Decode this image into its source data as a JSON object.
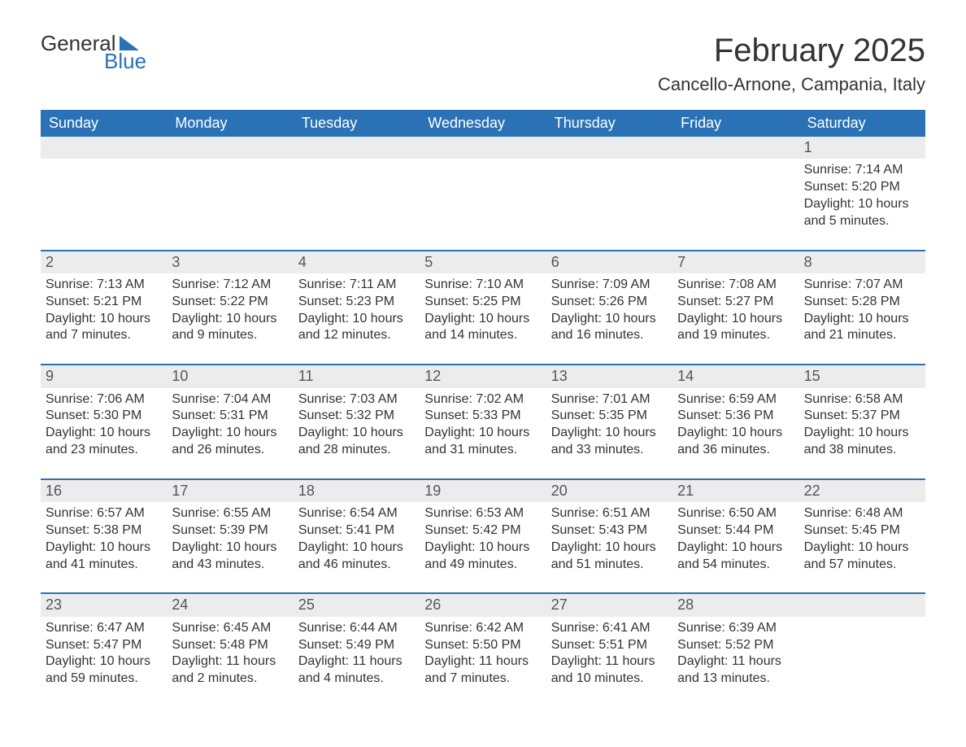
{
  "logo": {
    "line1": "General",
    "line2": "Blue"
  },
  "title": "February 2025",
  "location": "Cancello-Arnone, Campania, Italy",
  "colors": {
    "header_bg": "#2a72b5",
    "header_text": "#ffffff",
    "daynum_bg": "#ececec",
    "text": "#333333",
    "logo_accent": "#2a72b5"
  },
  "fonts": {
    "title_pt": 40,
    "location_pt": 22,
    "dayhead_pt": 18,
    "daynum_pt": 18,
    "body_pt": 16
  },
  "dayNames": [
    "Sunday",
    "Monday",
    "Tuesday",
    "Wednesday",
    "Thursday",
    "Friday",
    "Saturday"
  ],
  "leadingBlanks": 6,
  "trailingBlanks": 1,
  "days": [
    {
      "n": "1",
      "sunrise": "7:14 AM",
      "sunset": "5:20 PM",
      "daylight": "10 hours and 5 minutes."
    },
    {
      "n": "2",
      "sunrise": "7:13 AM",
      "sunset": "5:21 PM",
      "daylight": "10 hours and 7 minutes."
    },
    {
      "n": "3",
      "sunrise": "7:12 AM",
      "sunset": "5:22 PM",
      "daylight": "10 hours and 9 minutes."
    },
    {
      "n": "4",
      "sunrise": "7:11 AM",
      "sunset": "5:23 PM",
      "daylight": "10 hours and 12 minutes."
    },
    {
      "n": "5",
      "sunrise": "7:10 AM",
      "sunset": "5:25 PM",
      "daylight": "10 hours and 14 minutes."
    },
    {
      "n": "6",
      "sunrise": "7:09 AM",
      "sunset": "5:26 PM",
      "daylight": "10 hours and 16 minutes."
    },
    {
      "n": "7",
      "sunrise": "7:08 AM",
      "sunset": "5:27 PM",
      "daylight": "10 hours and 19 minutes."
    },
    {
      "n": "8",
      "sunrise": "7:07 AM",
      "sunset": "5:28 PM",
      "daylight": "10 hours and 21 minutes."
    },
    {
      "n": "9",
      "sunrise": "7:06 AM",
      "sunset": "5:30 PM",
      "daylight": "10 hours and 23 minutes."
    },
    {
      "n": "10",
      "sunrise": "7:04 AM",
      "sunset": "5:31 PM",
      "daylight": "10 hours and 26 minutes."
    },
    {
      "n": "11",
      "sunrise": "7:03 AM",
      "sunset": "5:32 PM",
      "daylight": "10 hours and 28 minutes."
    },
    {
      "n": "12",
      "sunrise": "7:02 AM",
      "sunset": "5:33 PM",
      "daylight": "10 hours and 31 minutes."
    },
    {
      "n": "13",
      "sunrise": "7:01 AM",
      "sunset": "5:35 PM",
      "daylight": "10 hours and 33 minutes."
    },
    {
      "n": "14",
      "sunrise": "6:59 AM",
      "sunset": "5:36 PM",
      "daylight": "10 hours and 36 minutes."
    },
    {
      "n": "15",
      "sunrise": "6:58 AM",
      "sunset": "5:37 PM",
      "daylight": "10 hours and 38 minutes."
    },
    {
      "n": "16",
      "sunrise": "6:57 AM",
      "sunset": "5:38 PM",
      "daylight": "10 hours and 41 minutes."
    },
    {
      "n": "17",
      "sunrise": "6:55 AM",
      "sunset": "5:39 PM",
      "daylight": "10 hours and 43 minutes."
    },
    {
      "n": "18",
      "sunrise": "6:54 AM",
      "sunset": "5:41 PM",
      "daylight": "10 hours and 46 minutes."
    },
    {
      "n": "19",
      "sunrise": "6:53 AM",
      "sunset": "5:42 PM",
      "daylight": "10 hours and 49 minutes."
    },
    {
      "n": "20",
      "sunrise": "6:51 AM",
      "sunset": "5:43 PM",
      "daylight": "10 hours and 51 minutes."
    },
    {
      "n": "21",
      "sunrise": "6:50 AM",
      "sunset": "5:44 PM",
      "daylight": "10 hours and 54 minutes."
    },
    {
      "n": "22",
      "sunrise": "6:48 AM",
      "sunset": "5:45 PM",
      "daylight": "10 hours and 57 minutes."
    },
    {
      "n": "23",
      "sunrise": "6:47 AM",
      "sunset": "5:47 PM",
      "daylight": "10 hours and 59 minutes."
    },
    {
      "n": "24",
      "sunrise": "6:45 AM",
      "sunset": "5:48 PM",
      "daylight": "11 hours and 2 minutes."
    },
    {
      "n": "25",
      "sunrise": "6:44 AM",
      "sunset": "5:49 PM",
      "daylight": "11 hours and 4 minutes."
    },
    {
      "n": "26",
      "sunrise": "6:42 AM",
      "sunset": "5:50 PM",
      "daylight": "11 hours and 7 minutes."
    },
    {
      "n": "27",
      "sunrise": "6:41 AM",
      "sunset": "5:51 PM",
      "daylight": "11 hours and 10 minutes."
    },
    {
      "n": "28",
      "sunrise": "6:39 AM",
      "sunset": "5:52 PM",
      "daylight": "11 hours and 13 minutes."
    }
  ],
  "labels": {
    "sunrise": "Sunrise:",
    "sunset": "Sunset:",
    "daylight": "Daylight:"
  }
}
